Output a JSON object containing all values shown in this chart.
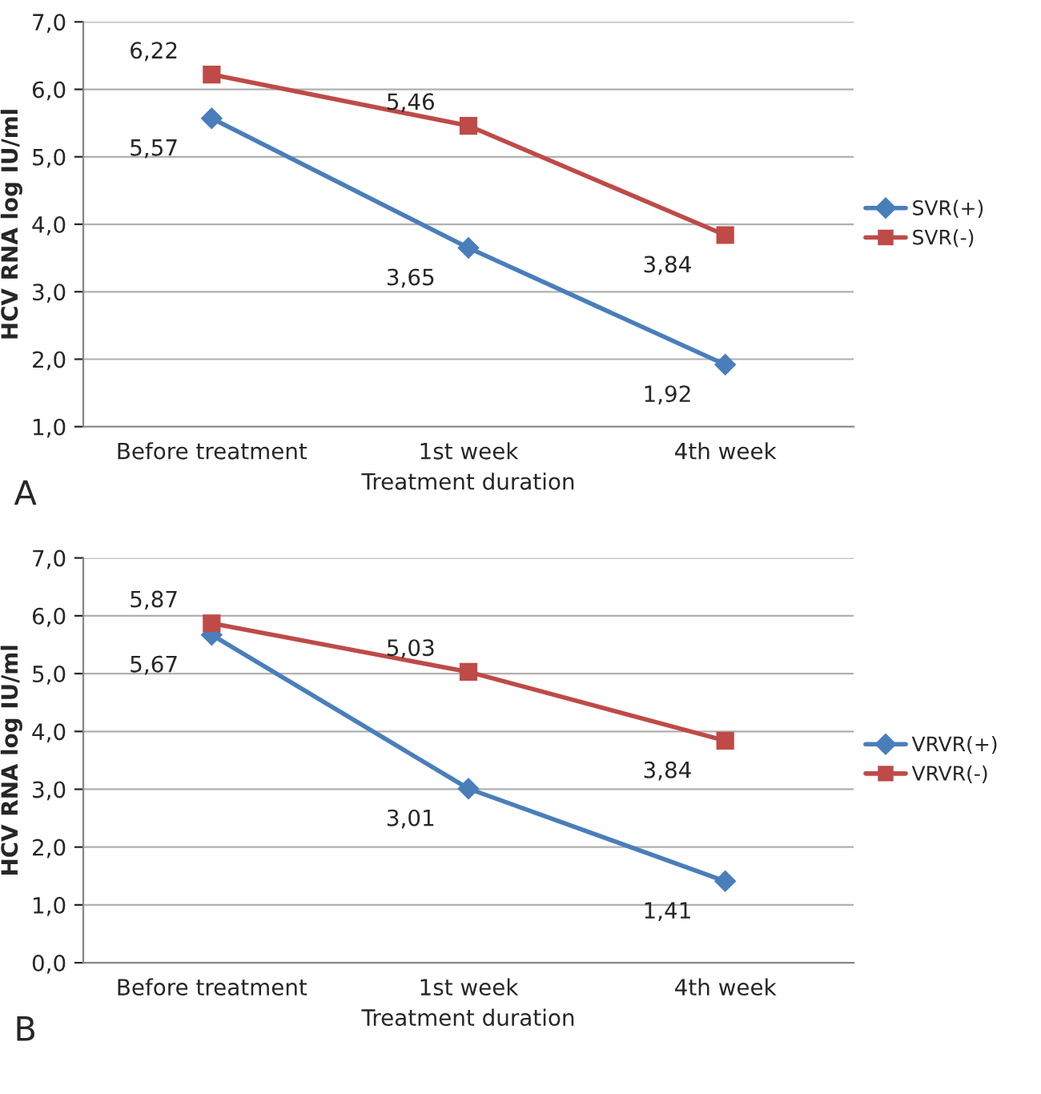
{
  "chart_data": [
    {
      "type": "line",
      "categories": [
        "Before treatment",
        "1st week",
        "4th week"
      ],
      "xlabel": "Treatment duration",
      "ylabel": "HCV RNA log IU/ml",
      "series": [
        {
          "name": "SVR(+)",
          "color": "#4a7ebb",
          "marker": "diamond",
          "values": [
            5.57,
            3.65,
            1.92
          ],
          "value_labels": [
            "5,57",
            "3,65",
            "1,92"
          ]
        },
        {
          "name": "SVR(-)",
          "color": "#be4b48",
          "marker": "square",
          "values": [
            6.22,
            5.46,
            3.84
          ],
          "value_labels": [
            "6,22",
            "5,46",
            "3,84"
          ]
        }
      ],
      "ylim": [
        1,
        7
      ],
      "yticks": [
        {
          "value": 1,
          "label": "1,0"
        },
        {
          "value": 2,
          "label": "2,0"
        },
        {
          "value": 3,
          "label": "3,0"
        },
        {
          "value": 4,
          "label": "4,0"
        },
        {
          "value": 5,
          "label": "5,0"
        },
        {
          "value": 6,
          "label": "6,0"
        },
        {
          "value": 7,
          "label": "7,0"
        }
      ],
      "grid": "y",
      "legend": "right",
      "line_style": "solid",
      "annotations": [
        "A"
      ]
    },
    {
      "type": "line",
      "categories": [
        "Before treatment",
        "1st week",
        "4th week"
      ],
      "xlabel": "Treatment duration",
      "ylabel": "HCV RNA log IU/ml",
      "series": [
        {
          "name": "VRVR(+)",
          "color": "#4a7ebb",
          "marker": "diamond",
          "values": [
            5.67,
            3.01,
            1.41
          ],
          "value_labels": [
            "5,67",
            "3,01",
            "1,41"
          ]
        },
        {
          "name": "VRVR(-)",
          "color": "#be4b48",
          "marker": "square",
          "values": [
            5.87,
            5.03,
            3.84
          ],
          "value_labels": [
            "5,87",
            "5,03",
            "3,84"
          ]
        }
      ],
      "ylim": [
        0,
        7
      ],
      "yticks": [
        {
          "value": 0,
          "label": "0,0"
        },
        {
          "value": 1,
          "label": "1,0"
        },
        {
          "value": 2,
          "label": "2,0"
        },
        {
          "value": 3,
          "label": "3,0"
        },
        {
          "value": 4,
          "label": "4,0"
        },
        {
          "value": 5,
          "label": "5,0"
        },
        {
          "value": 6,
          "label": "6,0"
        },
        {
          "value": 7,
          "label": "7,0"
        }
      ],
      "grid": "y",
      "legend": "right",
      "line_style": "solid",
      "annotations": [
        "B"
      ]
    }
  ]
}
